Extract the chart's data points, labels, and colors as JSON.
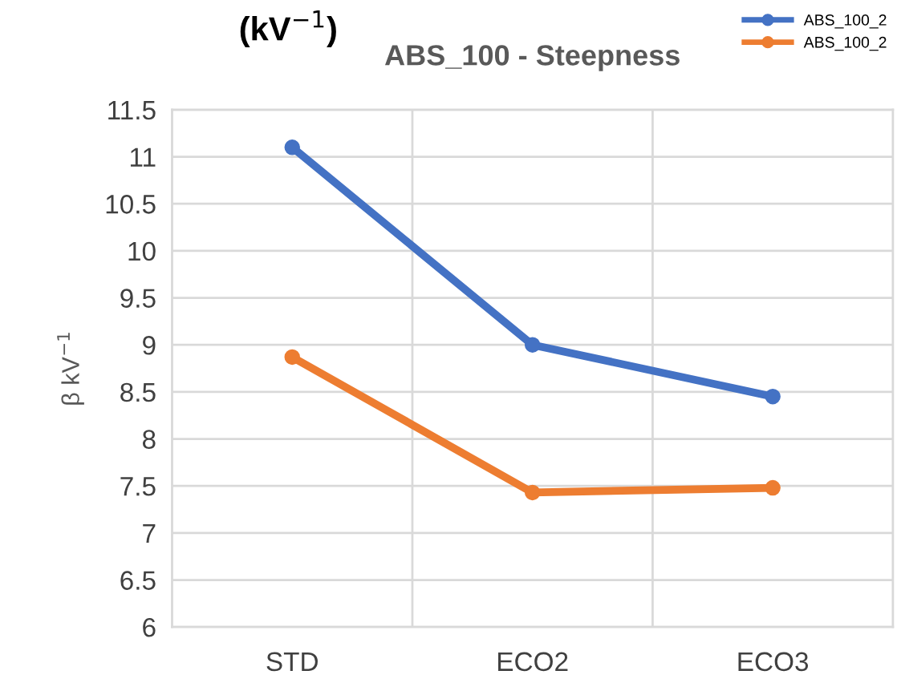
{
  "chart_data": {
    "type": "line",
    "title": "ABS_100 - Steepness",
    "ylabel": "β kV$^{−1}$",
    "annotations": [
      "(kV$^{−1}$)"
    ],
    "categories": [
      "STD",
      "ECO2",
      "ECO3"
    ],
    "series": [
      {
        "name": "ABS_100_2",
        "color": "#4472c4",
        "values": [
          11.1,
          9.0,
          8.45
        ]
      },
      {
        "name": "ABS_100_2",
        "color": "#ed7d31",
        "values": [
          8.87,
          7.43,
          7.48
        ]
      }
    ],
    "ylim": [
      6,
      11.5
    ],
    "yticks": [
      6,
      {
        "value": 6.5,
        "label": "6.5"
      },
      7,
      {
        "value": 7.5,
        "label": "7.5"
      },
      8,
      {
        "value": 8.5,
        "label": "8.5"
      },
      9,
      {
        "value": 9.5,
        "label": "9.5"
      },
      10,
      {
        "value": 10.5,
        "label": "10.5"
      },
      11,
      {
        "value": 11.5,
        "label": "11.5"
      }
    ],
    "grid": true,
    "legend": "top right",
    "marker": "circle",
    "line_style": "solid"
  }
}
